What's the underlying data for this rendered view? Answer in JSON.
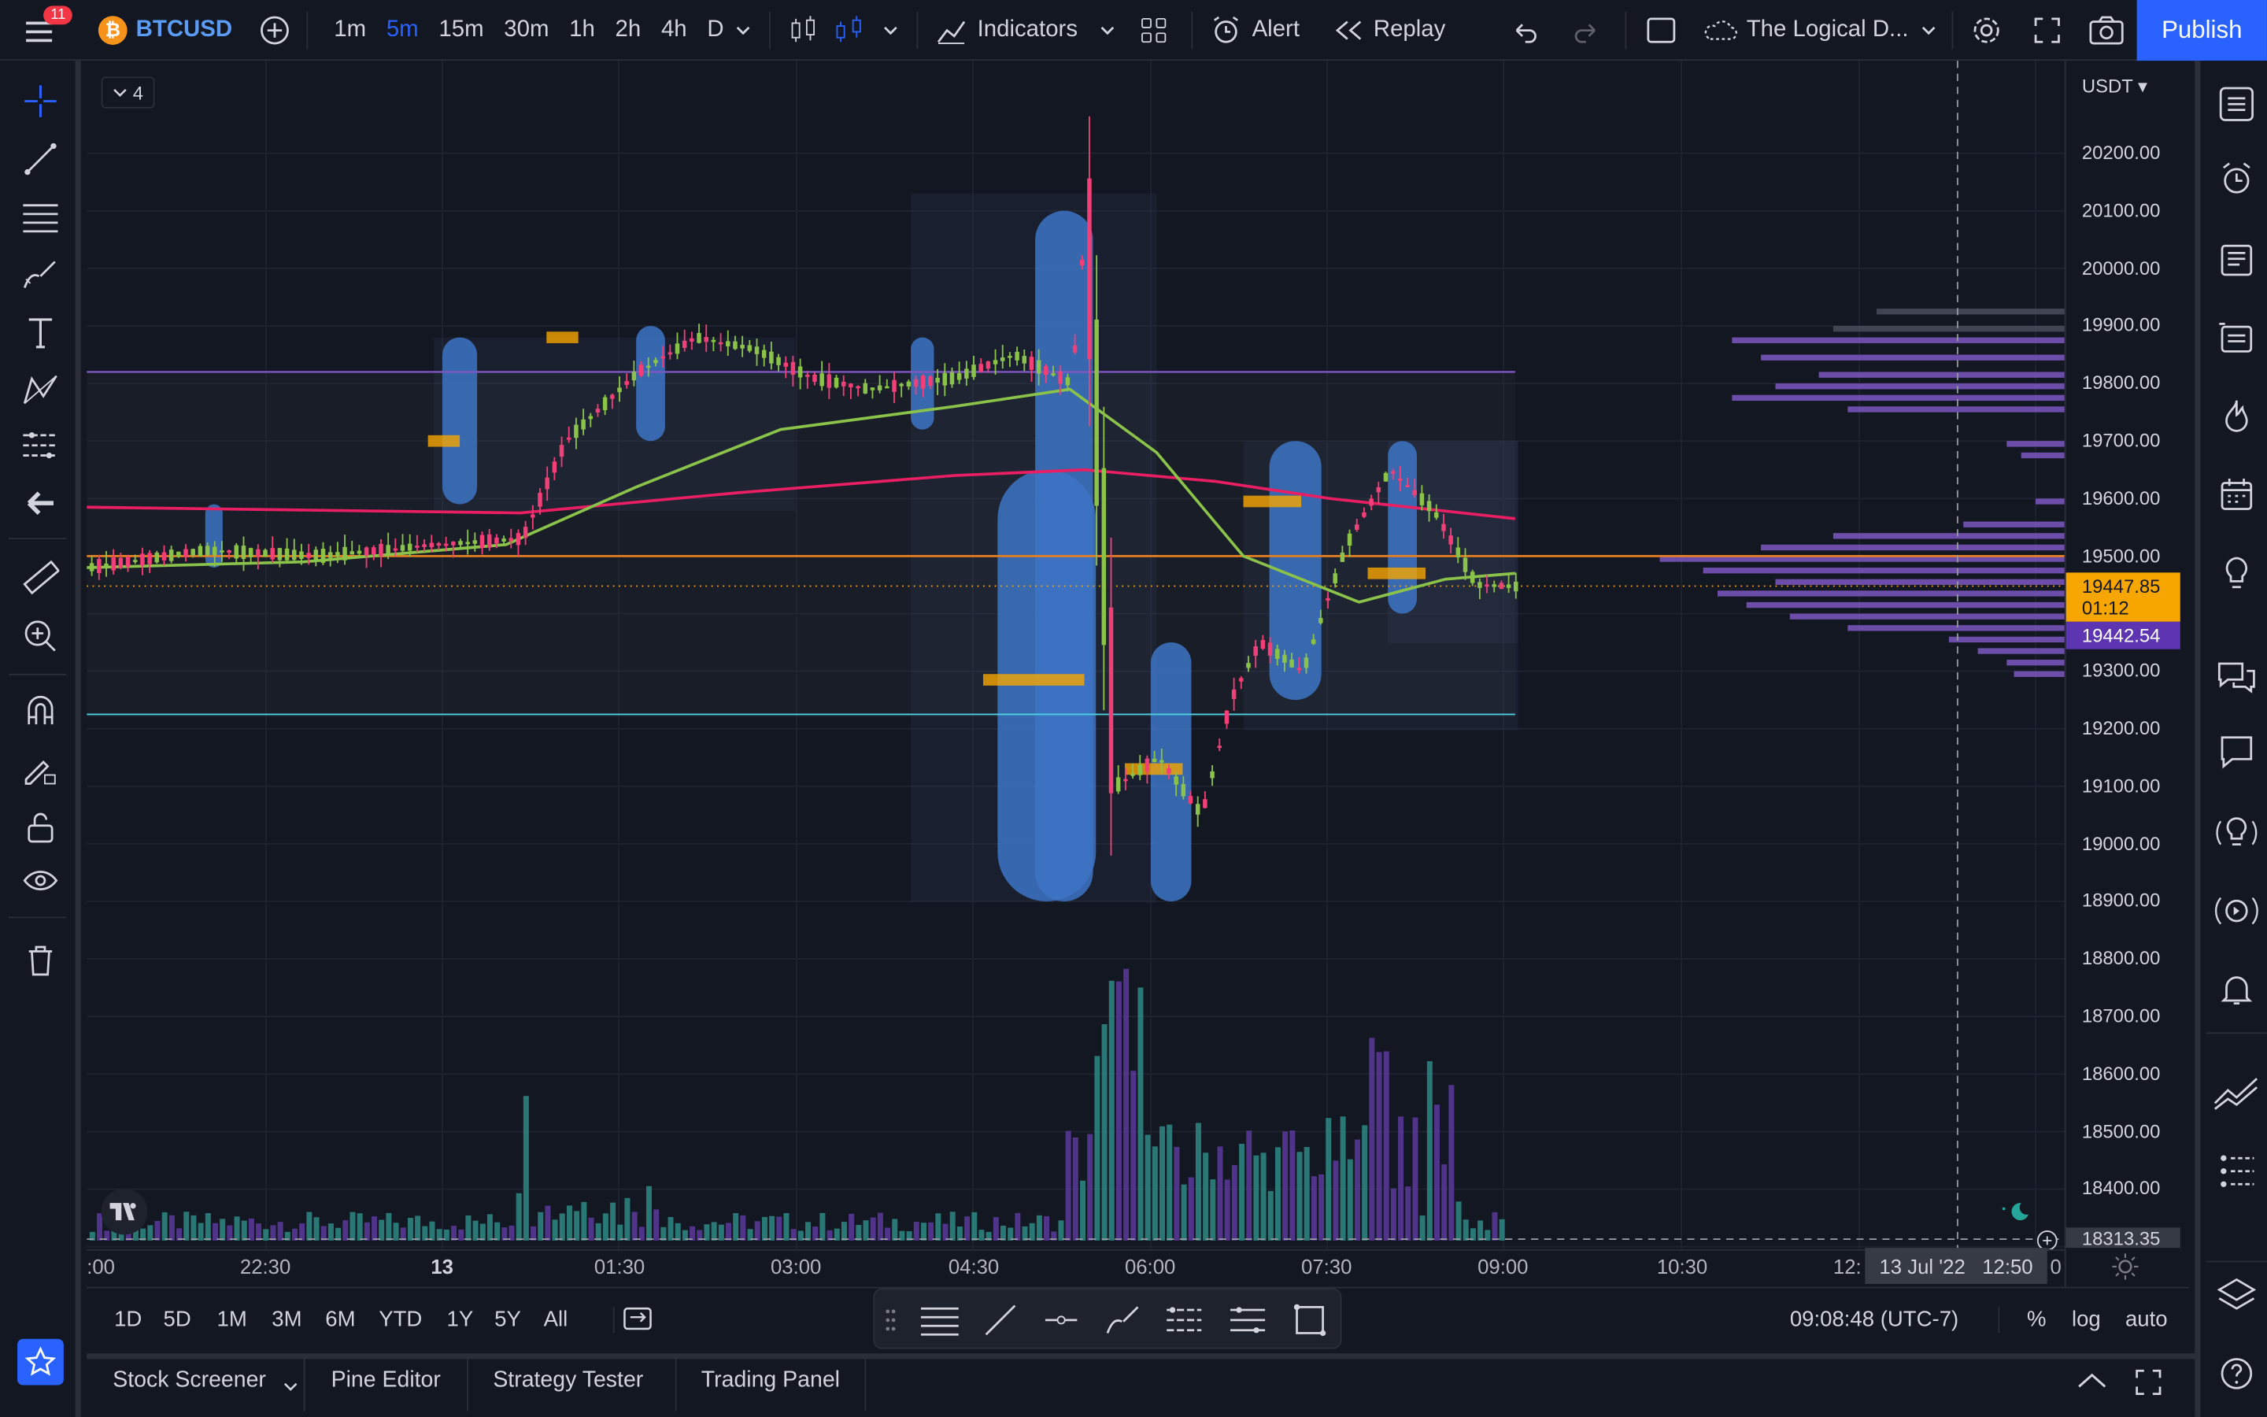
{
  "topbar": {
    "menu_badge": "11",
    "symbol": "BTCUSD",
    "intervals": [
      "1m",
      "5m",
      "15m",
      "30m",
      "1h",
      "2h",
      "4h",
      "D"
    ],
    "active_interval": "5m",
    "indicators_label": "Indicators",
    "alert_label": "Alert",
    "replay_label": "Replay",
    "layout_name": "The Logical D...",
    "publish_label": "Publish"
  },
  "chart": {
    "legend_count": "4",
    "currency": "USDT",
    "price_ticks": [
      "20200.00",
      "20100.00",
      "20000.00",
      "19900.00",
      "19800.00",
      "19700.00",
      "19600.00",
      "19500.00",
      "19400.00",
      "19300.00",
      "19200.00",
      "19100.00",
      "19000.00",
      "18900.00",
      "18800.00",
      "18700.00",
      "18600.00",
      "18500.00",
      "18400.00"
    ],
    "current_price": "19447.85",
    "countdown": "01:12",
    "second_price": "19442.54",
    "crosshair_price": "18313.35",
    "time_ticks": [
      ":00",
      "22:30",
      "13",
      "01:30",
      "03:00",
      "04:30",
      "06:00",
      "07:30",
      "09:00",
      "10:30",
      "12:",
      "0"
    ],
    "crosshair_time": "13 Jul '22   12:50",
    "colors": {
      "up": "#26a69a",
      "down": "#ef5350",
      "accent": "#2962ff",
      "volume_profile": "#7e57c2",
      "poc": "#f7a600",
      "ma_green": "#8bc34a",
      "ma_red": "#e91e63"
    }
  },
  "bottombar": {
    "ranges": [
      "1D",
      "5D",
      "1M",
      "3M",
      "6M",
      "YTD",
      "1Y",
      "5Y",
      "All"
    ],
    "clock": "09:08:48 (UTC-7)",
    "percent_label": "%",
    "log_label": "log",
    "auto_label": "auto"
  },
  "panels": {
    "tabs": [
      "Stock Screener",
      "Pine Editor",
      "Strategy Tester",
      "Trading Panel"
    ]
  }
}
